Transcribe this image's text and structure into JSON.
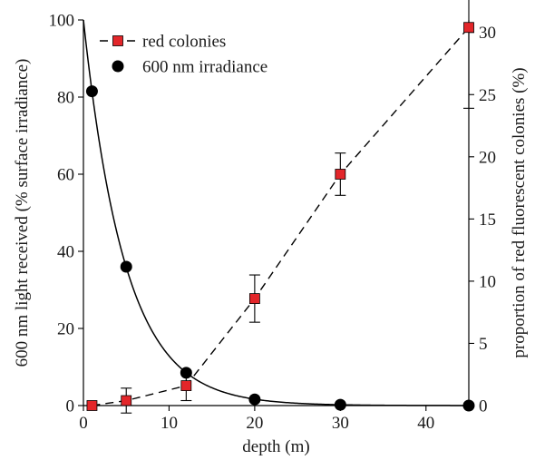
{
  "chart_data": {
    "type": "line",
    "xlabel": "depth (m)",
    "ylabel_left": "600 nm light received (% surface irradiance)",
    "ylabel_right": "proportion of red fluorescent colonies (%)",
    "xlim": [
      0,
      45
    ],
    "ylim_left": [
      0,
      100
    ],
    "ylim_right": [
      0,
      31
    ],
    "x_ticks": [
      "0",
      "10",
      "20",
      "30",
      "40"
    ],
    "y_left_ticks": [
      "0",
      "20",
      "40",
      "60",
      "80",
      "100"
    ],
    "y_right_ticks": [
      "0",
      "5",
      "10",
      "15",
      "20",
      "25",
      "30"
    ],
    "legend_position": "top-left",
    "series": [
      {
        "name": "red colonies",
        "axis": "right",
        "marker": "square",
        "line_style": "dashed",
        "color": "#e3262a",
        "points": [
          {
            "x": 1,
            "y": 0,
            "err": 0
          },
          {
            "x": 5,
            "y": 0.4,
            "err": 1.0
          },
          {
            "x": 12,
            "y": 1.6,
            "err": 1.2
          },
          {
            "x": 20,
            "y": 8.6,
            "err": 1.9
          },
          {
            "x": 30,
            "y": 18.6,
            "err": 1.7
          },
          {
            "x": 45,
            "y": 30.4,
            "err": 6.5
          }
        ]
      },
      {
        "name": "600 nm irradiance",
        "axis": "left",
        "marker": "circle",
        "line_style": "solid",
        "color": "#000000",
        "points": [
          {
            "x": 1,
            "y": 81.5
          },
          {
            "x": 5,
            "y": 36
          },
          {
            "x": 12,
            "y": 8.5
          },
          {
            "x": 20,
            "y": 1.6
          },
          {
            "x": 30,
            "y": 0.2
          },
          {
            "x": 45,
            "y": 0
          }
        ],
        "fit_curve": {
          "type": "exponential",
          "a": 100,
          "k": 0.205
        }
      }
    ]
  }
}
